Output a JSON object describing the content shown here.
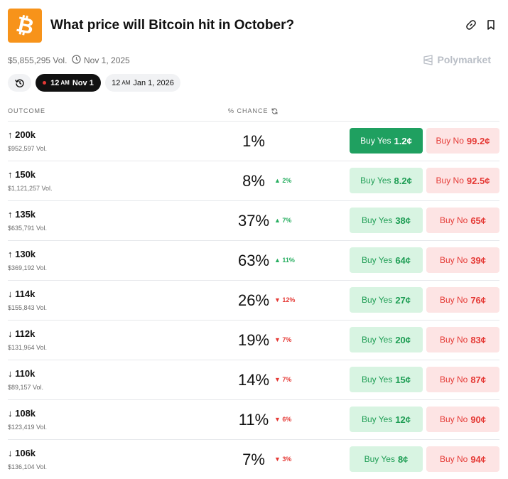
{
  "header": {
    "title": "What price will Bitcoin hit in October?",
    "logo_glyph": "₿"
  },
  "meta": {
    "volume": "$5,855,295 Vol.",
    "date": "Nov 1, 2025",
    "brand": "Polymarket"
  },
  "chips": {
    "active": {
      "time": "12",
      "ampm": "AM",
      "date": "Nov 1"
    },
    "next": {
      "time": "12",
      "ampm": "AM",
      "date": "Jan 1, 2026"
    }
  },
  "columns": {
    "outcome": "OUTCOME",
    "chance": "% CHANCE"
  },
  "rows": [
    {
      "label": "↑ 200k",
      "volume": "$952,597 Vol.",
      "chance": "1%",
      "change": "",
      "dir": "",
      "yes": "1.2¢",
      "no": "99.2¢"
    },
    {
      "label": "↑ 150k",
      "volume": "$1,121,257 Vol.",
      "chance": "8%",
      "change": "▲ 2%",
      "dir": "up",
      "yes": "8.2¢",
      "no": "92.5¢"
    },
    {
      "label": "↑ 135k",
      "volume": "$635,791 Vol.",
      "chance": "37%",
      "change": "▲ 7%",
      "dir": "up",
      "yes": "38¢",
      "no": "65¢"
    },
    {
      "label": "↑ 130k",
      "volume": "$369,192 Vol.",
      "chance": "63%",
      "change": "▲ 11%",
      "dir": "up",
      "yes": "64¢",
      "no": "39¢"
    },
    {
      "label": "↓ 114k",
      "volume": "$155,843 Vol.",
      "chance": "26%",
      "change": "▼ 12%",
      "dir": "down",
      "yes": "27¢",
      "no": "76¢"
    },
    {
      "label": "↓ 112k",
      "volume": "$131,964 Vol.",
      "chance": "19%",
      "change": "▼ 7%",
      "dir": "down",
      "yes": "20¢",
      "no": "83¢"
    },
    {
      "label": "↓ 110k",
      "volume": "$89,157 Vol.",
      "chance": "14%",
      "change": "▼ 7%",
      "dir": "down",
      "yes": "15¢",
      "no": "87¢"
    },
    {
      "label": "↓ 108k",
      "volume": "$123,419 Vol.",
      "chance": "11%",
      "change": "▼ 6%",
      "dir": "down",
      "yes": "12¢",
      "no": "90¢"
    },
    {
      "label": "↓ 106k",
      "volume": "$136,104 Vol.",
      "chance": "7%",
      "change": "▼ 3%",
      "dir": "down",
      "yes": "8¢",
      "no": "94¢"
    }
  ],
  "labels": {
    "buy_yes": "Buy Yes",
    "buy_no": "Buy No"
  },
  "colors": {
    "bitcoin": "#f7931a",
    "yes": "#1fa060",
    "no": "#e53935"
  }
}
